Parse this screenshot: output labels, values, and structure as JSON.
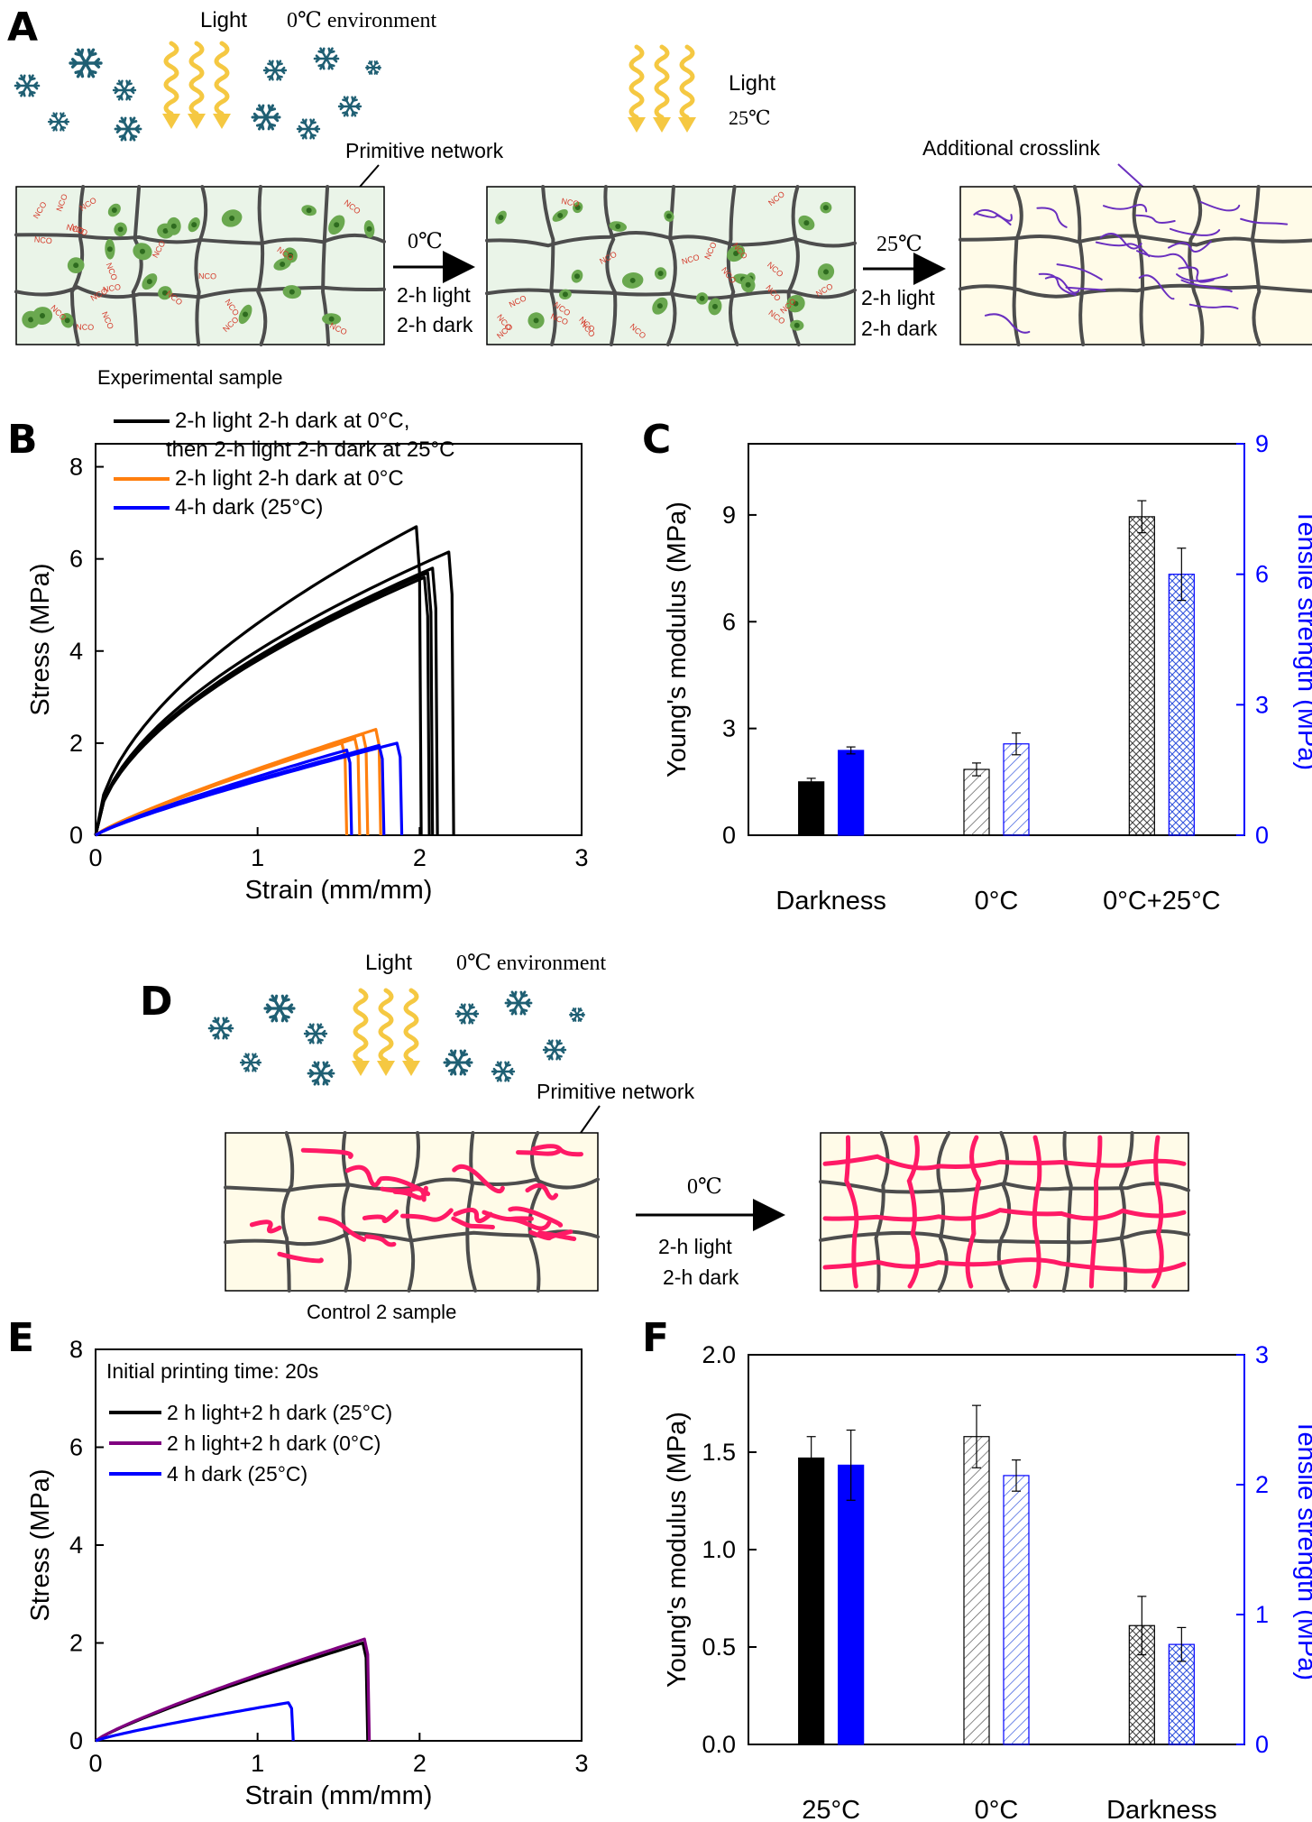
{
  "panels": {
    "A": "A",
    "B": "B",
    "C": "C",
    "D": "D",
    "E": "E",
    "F": "F"
  },
  "schematic_A": {
    "light": "Light",
    "env": "0℃ environment",
    "light2": "Light",
    "temp2": "25℃",
    "primitive": "Primitive network",
    "additional": "Additional crosslink",
    "step1_temp": "0℃",
    "step1_l1": "2-h light",
    "step1_l2": "2-h dark",
    "step2_temp": "25℃",
    "step2_l1": "2-h light",
    "step2_l2": "2-h dark",
    "sample": "Experimental sample",
    "nco": "NCO"
  },
  "schematic_D": {
    "light": "Light",
    "env": "0℃ environment",
    "primitive": "Primitive network",
    "step_temp": "0℃",
    "step_l1": "2-h light",
    "step_l2": "2-h dark",
    "sample": "Control 2 sample"
  },
  "colors": {
    "black": "#000000",
    "orange": "#ff7f0e",
    "blue": "#0000ff",
    "purple": "#800080",
    "snow": "#1f5f73",
    "light": "#f5c842",
    "green": "#6aa84f",
    "pink": "#ff1a66",
    "chainGray": "#4d4d4d",
    "violet": "#6a2fbf"
  },
  "chart_data": [
    {
      "id": "B",
      "type": "line",
      "xlabel": "Strain (mm/mm)",
      "ylabel": "Stress (MPa)",
      "xlim": [
        0,
        3
      ],
      "ylim": [
        0,
        8.5
      ],
      "xticks": [
        "0",
        "1",
        "2",
        "3"
      ],
      "yticks": [
        "0",
        "2",
        "4",
        "6",
        "8"
      ],
      "legend": [
        "2-h light 2-h dark at 0°C,",
        "then 2-h light 2-h dark at 25°C",
        "2-h light 2-h dark at 0°C",
        "4-h dark (25°C)"
      ],
      "legend_placement": "top-left",
      "series": [
        {
          "name": "2-h light 2-h dark at 0°C, then 2-h light 2-h dark at 25°C",
          "color": "black",
          "curves": [
            {
              "break": 1.98,
              "peak": 6.7
            },
            {
              "break": 2.18,
              "peak": 6.15
            },
            {
              "break": 2.08,
              "peak": 5.8
            },
            {
              "break": 2.05,
              "peak": 5.7
            },
            {
              "break": 2.03,
              "peak": 5.6
            }
          ]
        },
        {
          "name": "2-h light 2-h dark at 0°C",
          "color": "orange",
          "curves": [
            {
              "break": 1.73,
              "peak": 2.3
            },
            {
              "break": 1.65,
              "peak": 2.2
            },
            {
              "break": 1.6,
              "peak": 2.1
            },
            {
              "break": 1.52,
              "peak": 2.0
            }
          ]
        },
        {
          "name": "4-h dark (25°C)",
          "color": "blue",
          "curves": [
            {
              "break": 1.86,
              "peak": 2.0
            },
            {
              "break": 1.75,
              "peak": 1.95
            },
            {
              "break": 1.55,
              "peak": 1.85
            }
          ]
        }
      ]
    },
    {
      "id": "C",
      "type": "bar",
      "categories": [
        "Darkness",
        "0°C",
        "0°C+25°C"
      ],
      "ylabel": "Young's modulus (MPa)",
      "y2label": "Tensile strength (MPa)",
      "ylim": [
        0,
        11
      ],
      "y2lim": [
        0,
        9
      ],
      "yticks": [
        "0",
        "3",
        "6",
        "9"
      ],
      "y2ticks": [
        "0",
        "3",
        "6",
        "9"
      ],
      "series": [
        {
          "name": "Young's modulus",
          "axis": "left",
          "values": [
            1.5,
            1.85,
            8.95
          ],
          "errors": [
            0.1,
            0.18,
            0.45
          ],
          "fills": [
            "solid",
            "hatch",
            "crosshatch"
          ]
        },
        {
          "name": "Tensile strength",
          "axis": "right",
          "values": [
            1.95,
            2.1,
            6.0
          ],
          "errors": [
            0.08,
            0.25,
            0.6
          ],
          "fills": [
            "solid",
            "hatch",
            "crosshatch"
          ]
        }
      ]
    },
    {
      "id": "E",
      "type": "line",
      "xlabel": "Strain (mm/mm)",
      "ylabel": "Stress (MPa)",
      "xlim": [
        0,
        3
      ],
      "ylim": [
        0,
        8
      ],
      "xticks": [
        "0",
        "1",
        "2",
        "3"
      ],
      "yticks": [
        "0",
        "2",
        "4",
        "6",
        "8"
      ],
      "annotation": "Initial printing time: 20s",
      "legend": [
        "2 h light+2 h dark (25°C)",
        "2 h light+2 h dark (0°C)",
        "4 h dark (25°C)"
      ],
      "legend_placement": "top-left",
      "series": [
        {
          "name": "2 h light+2 h dark (25°C)",
          "color": "black",
          "curves": [
            {
              "break": 1.65,
              "peak": 2.0
            }
          ]
        },
        {
          "name": "2 h light+2 h dark (0°C)",
          "color": "purple",
          "curves": [
            {
              "break": 1.66,
              "peak": 2.08
            }
          ]
        },
        {
          "name": "4 h dark (25°C)",
          "color": "blue",
          "curves": [
            {
              "break": 1.19,
              "peak": 0.78
            }
          ]
        }
      ]
    },
    {
      "id": "F",
      "type": "bar",
      "categories": [
        "25°C",
        "0°C",
        "Darkness"
      ],
      "ylabel": "Young's modulus (MPa)",
      "y2label": "Tensile strength (MPa)",
      "ylim": [
        0,
        2.0
      ],
      "y2lim": [
        0,
        3
      ],
      "yticks": [
        "0.0",
        "0.5",
        "1.0",
        "1.5",
        "2.0"
      ],
      "y2ticks": [
        "0",
        "1",
        "2",
        "3"
      ],
      "series": [
        {
          "name": "Young's modulus",
          "axis": "left",
          "values": [
            1.47,
            1.58,
            0.61
          ],
          "errors": [
            0.11,
            0.16,
            0.15
          ],
          "fills": [
            "solid",
            "hatch",
            "crosshatch"
          ]
        },
        {
          "name": "Tensile strength",
          "axis": "right",
          "values": [
            2.15,
            2.07,
            0.77
          ],
          "errors": [
            0.27,
            0.12,
            0.13
          ],
          "fills": [
            "solid",
            "hatch",
            "crosshatch"
          ]
        }
      ]
    }
  ]
}
